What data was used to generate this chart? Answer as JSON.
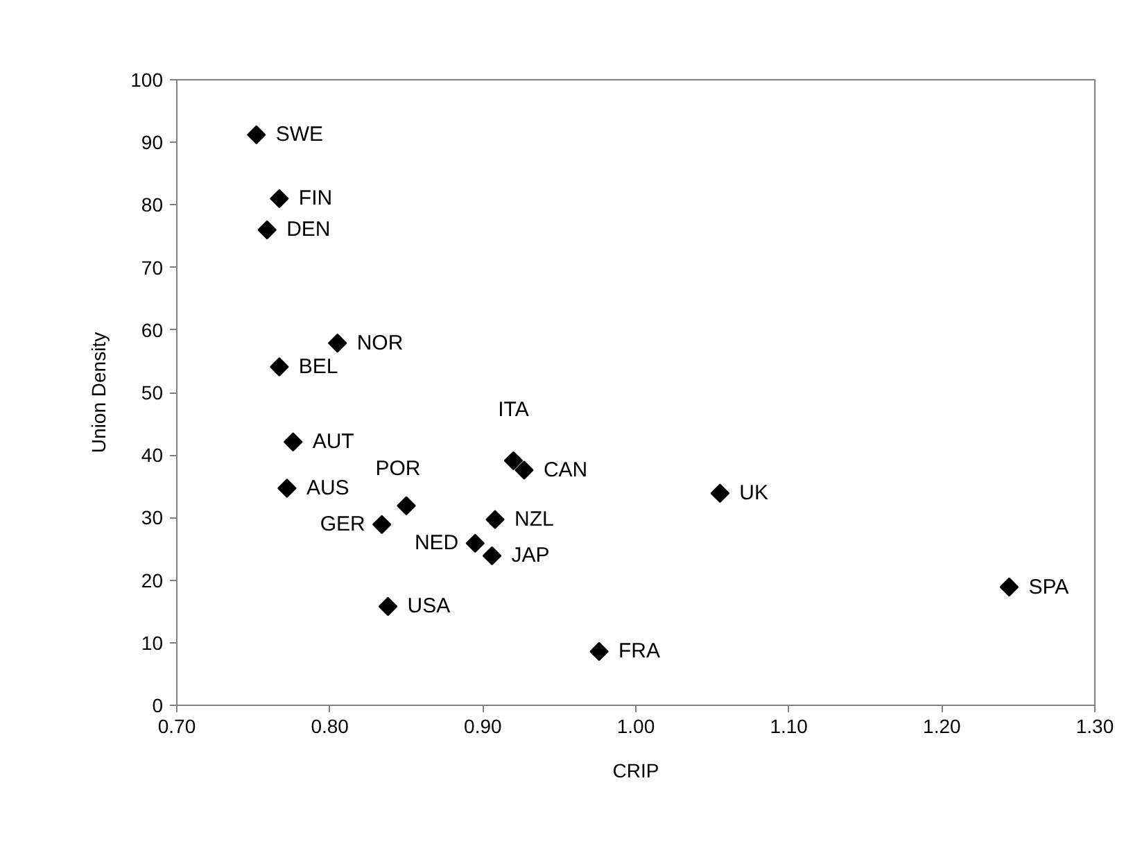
{
  "chart_data": {
    "type": "scatter",
    "xlabel": "CRIP",
    "ylabel": "Union Density",
    "xlim": [
      0.7,
      1.3
    ],
    "xticks": [
      {
        "value": 0.7,
        "label": "0.70"
      },
      {
        "value": 0.8,
        "label": "0.80"
      },
      {
        "value": 0.9,
        "label": "0.90"
      },
      {
        "value": 1.0,
        "label": "1.00"
      },
      {
        "value": 1.1,
        "label": "1.10"
      },
      {
        "value": 1.2,
        "label": "1.20"
      },
      {
        "value": 1.3,
        "label": "1.30"
      }
    ],
    "ylim": [
      0,
      100
    ],
    "yticks": [
      0,
      10,
      20,
      30,
      40,
      50,
      60,
      70,
      80,
      90,
      100
    ],
    "grid": false,
    "marker": "diamond",
    "series": [
      {
        "color": "#000000",
        "x": [
          0.752,
          0.767,
          0.759,
          0.805,
          0.767,
          0.776,
          0.772,
          0.834,
          0.85,
          0.838,
          0.895,
          0.906,
          0.908,
          0.92,
          0.927,
          0.976,
          1.055,
          1.244
        ],
        "values": [
          91.2,
          81.0,
          76.0,
          57.9,
          54.1,
          42.1,
          34.7,
          28.9,
          31.9,
          15.8,
          25.9,
          23.9,
          29.7,
          39.1,
          37.6,
          8.6,
          33.9,
          18.9
        ]
      }
    ],
    "annotations": [
      {
        "text": "SWE",
        "x": 0.752,
        "y": 91.2
      },
      {
        "text": "FIN",
        "x": 0.767,
        "y": 81.0
      },
      {
        "text": "DEN",
        "x": 0.759,
        "y": 76.0
      },
      {
        "text": "NOR",
        "x": 0.805,
        "y": 57.9
      },
      {
        "text": "BEL",
        "x": 0.767,
        "y": 54.1
      },
      {
        "text": "AUT",
        "x": 0.776,
        "y": 42.1
      },
      {
        "text": "AUS",
        "x": 0.772,
        "y": 34.7
      },
      {
        "text": "GER",
        "x": 0.834,
        "y": 28.9
      },
      {
        "text": "POR",
        "x": 0.85,
        "y": 31.9
      },
      {
        "text": "USA",
        "x": 0.838,
        "y": 15.8
      },
      {
        "text": "NED",
        "x": 0.895,
        "y": 25.9
      },
      {
        "text": "JAP",
        "x": 0.906,
        "y": 23.9
      },
      {
        "text": "NZL",
        "x": 0.908,
        "y": 29.7
      },
      {
        "text": "ITA",
        "x": 0.92,
        "y": 39.1
      },
      {
        "text": "CAN",
        "x": 0.927,
        "y": 37.6
      },
      {
        "text": "FRA",
        "x": 0.976,
        "y": 8.6
      },
      {
        "text": "UK",
        "x": 1.055,
        "y": 33.9
      },
      {
        "text": "SPA",
        "x": 1.244,
        "y": 18.9
      }
    ]
  }
}
